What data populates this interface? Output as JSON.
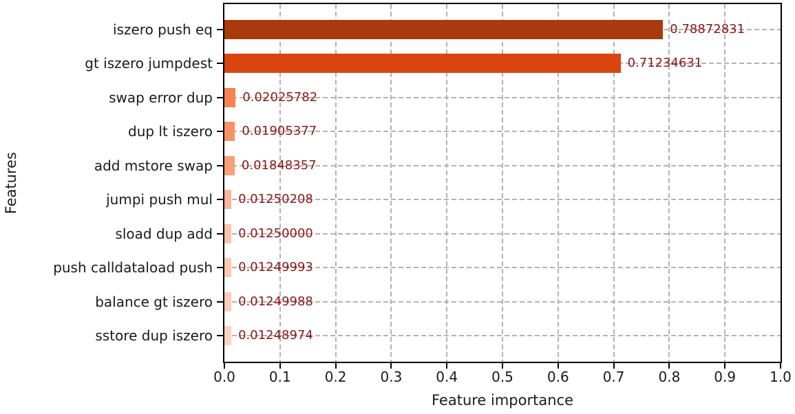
{
  "chart_data": {
    "type": "bar",
    "orientation": "horizontal",
    "title": "",
    "xlabel": "Feature importance",
    "ylabel": "Features",
    "xlim": [
      0.0,
      1.0
    ],
    "x_tick_labels": [
      "0.0",
      "0.1",
      "0.2",
      "0.3",
      "0.4",
      "0.5",
      "0.6",
      "0.7",
      "0.8",
      "0.9",
      "1.0"
    ],
    "grid": "dashed, gray, vertical at each x tick and horizontal at each bar center",
    "legend": "none",
    "categories": [
      "iszero push eq",
      "gt iszero jumpdest",
      "swap error dup",
      "dup lt iszero",
      "add mstore swap",
      "jumpi push mul",
      "sload dup add",
      "push calldataload push",
      "balance gt iszero",
      "sstore dup iszero"
    ],
    "values": [
      0.78872831,
      0.71234631,
      0.02025782,
      0.01905377,
      0.01848357,
      0.01250208,
      0.0125,
      0.01249993,
      0.01249988,
      0.01248974
    ],
    "value_labels": [
      "0.78872831",
      "0.71234631",
      "0.02025782",
      "0.01905377",
      "0.01848357",
      "0.01250208",
      "0.01250000",
      "0.01249993",
      "0.01249988",
      "0.01248974"
    ],
    "bar_colors": [
      "#a83a0d",
      "#d9450e",
      "#f6824f",
      "#f79166",
      "#f8a078",
      "#fab699",
      "#fbc3aa",
      "#fcc9b2",
      "#fccdb8",
      "#fdd3c2"
    ],
    "colors": {
      "value_label": "#8e1515",
      "grid": "#b2b2b2",
      "axis": "#000000",
      "text": "#1a1a1a",
      "background": "#ffffff"
    }
  }
}
